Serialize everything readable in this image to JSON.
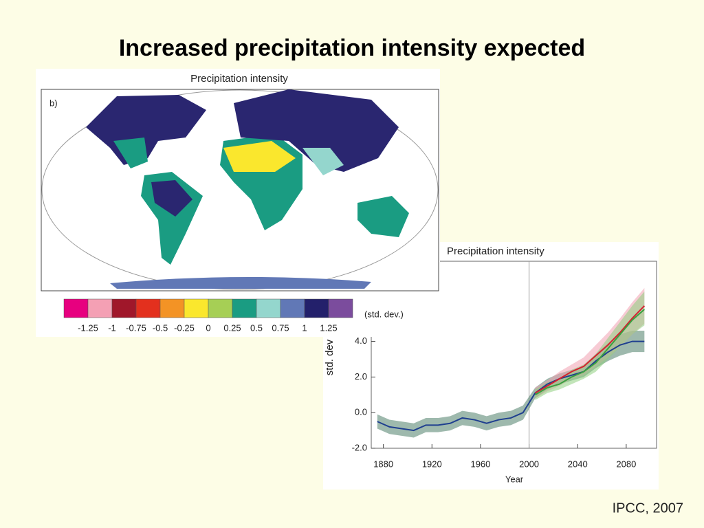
{
  "title": "Increased precipitation intensity expected",
  "source": "IPCC, 2007",
  "map": {
    "title": "Precipitation intensity",
    "panel": "b)",
    "unit": "(std. dev.)",
    "colors": [
      "#e7007f",
      "#f4a0b4",
      "#a0172a",
      "#e3301e",
      "#f39325",
      "#fae72d",
      "#a6cf55",
      "#1a9c82",
      "#94d6cd",
      "#6178b6",
      "#23206b",
      "#7b4c9d"
    ],
    "boundaries": [
      -1.25,
      -1,
      -0.75,
      -0.5,
      -0.25,
      0,
      0.25,
      0.5,
      0.75,
      1,
      1.25
    ]
  },
  "chart_data": {
    "type": "line",
    "title": "Precipitation intensity",
    "x_label": "Year",
    "y_label": "std. dev",
    "x": [
      1875,
      1885,
      1895,
      1905,
      1915,
      1925,
      1935,
      1945,
      1955,
      1965,
      1975,
      1985,
      1995,
      2005,
      2015,
      2025,
      2035,
      2045,
      2055,
      2065,
      2075,
      2085,
      2095
    ],
    "series": [
      {
        "color": "#1f3f8f",
        "band_color": "#4f7f6a",
        "values": [
          -0.5,
          -0.8,
          -0.9,
          -1.0,
          -0.7,
          -0.7,
          -0.6,
          -0.3,
          -0.4,
          -0.6,
          -0.4,
          -0.3,
          0.0,
          1.1,
          1.6,
          1.9,
          2.1,
          2.3,
          2.9,
          3.4,
          3.8,
          4.0,
          4.0
        ],
        "lower": [
          -0.9,
          -1.2,
          -1.3,
          -1.4,
          -1.1,
          -1.1,
          -1.0,
          -0.7,
          -0.8,
          -1.0,
          -0.8,
          -0.7,
          -0.4,
          0.8,
          1.3,
          1.6,
          1.8,
          2.0,
          2.5,
          2.9,
          3.2,
          3.4,
          3.4
        ],
        "upper": [
          -0.1,
          -0.4,
          -0.5,
          -0.6,
          -0.3,
          -0.3,
          -0.2,
          0.1,
          0.0,
          -0.2,
          0.0,
          0.1,
          0.4,
          1.4,
          1.9,
          2.2,
          2.4,
          2.6,
          3.3,
          3.9,
          4.4,
          4.6,
          4.6
        ]
      },
      {
        "color": "#d42030",
        "band_color": "#f0a0b0",
        "values": [
          null,
          null,
          null,
          null,
          null,
          null,
          null,
          null,
          null,
          null,
          null,
          null,
          null,
          1.1,
          1.5,
          1.9,
          2.3,
          2.6,
          3.2,
          3.8,
          4.5,
          5.3,
          6.0
        ],
        "lower": [
          null,
          null,
          null,
          null,
          null,
          null,
          null,
          null,
          null,
          null,
          null,
          null,
          null,
          0.8,
          1.2,
          1.5,
          1.9,
          2.1,
          2.6,
          3.1,
          3.7,
          4.4,
          5.0
        ],
        "upper": [
          null,
          null,
          null,
          null,
          null,
          null,
          null,
          null,
          null,
          null,
          null,
          null,
          null,
          1.4,
          1.8,
          2.3,
          2.7,
          3.1,
          3.8,
          4.5,
          5.3,
          6.2,
          7.0
        ]
      },
      {
        "color": "#3aa040",
        "band_color": "#8fd080",
        "values": [
          null,
          null,
          null,
          null,
          null,
          null,
          null,
          null,
          null,
          null,
          null,
          null,
          null,
          1.0,
          1.4,
          1.6,
          2.0,
          2.3,
          2.8,
          3.6,
          4.4,
          5.2,
          5.8
        ],
        "lower": [
          null,
          null,
          null,
          null,
          null,
          null,
          null,
          null,
          null,
          null,
          null,
          null,
          null,
          0.7,
          1.1,
          1.3,
          1.6,
          1.9,
          2.3,
          3.0,
          3.7,
          4.4,
          4.9
        ],
        "upper": [
          null,
          null,
          null,
          null,
          null,
          null,
          null,
          null,
          null,
          null,
          null,
          null,
          null,
          1.3,
          1.7,
          1.9,
          2.4,
          2.7,
          3.3,
          4.2,
          5.1,
          6.0,
          6.8
        ]
      }
    ],
    "vline": 2000,
    "xlim": [
      1870,
      2105
    ],
    "xticks": [
      1880,
      1920,
      1960,
      2000,
      2040,
      2080
    ],
    "ylim": [
      -2.0,
      8.5
    ],
    "yticks": [
      {
        "value": -2.0,
        "label": "-2.0"
      },
      {
        "value": 0.0,
        "label": "0.0"
      },
      {
        "value": 2.0,
        "label": "2.0"
      },
      {
        "value": 4.0,
        "label": "4.0"
      }
    ]
  }
}
